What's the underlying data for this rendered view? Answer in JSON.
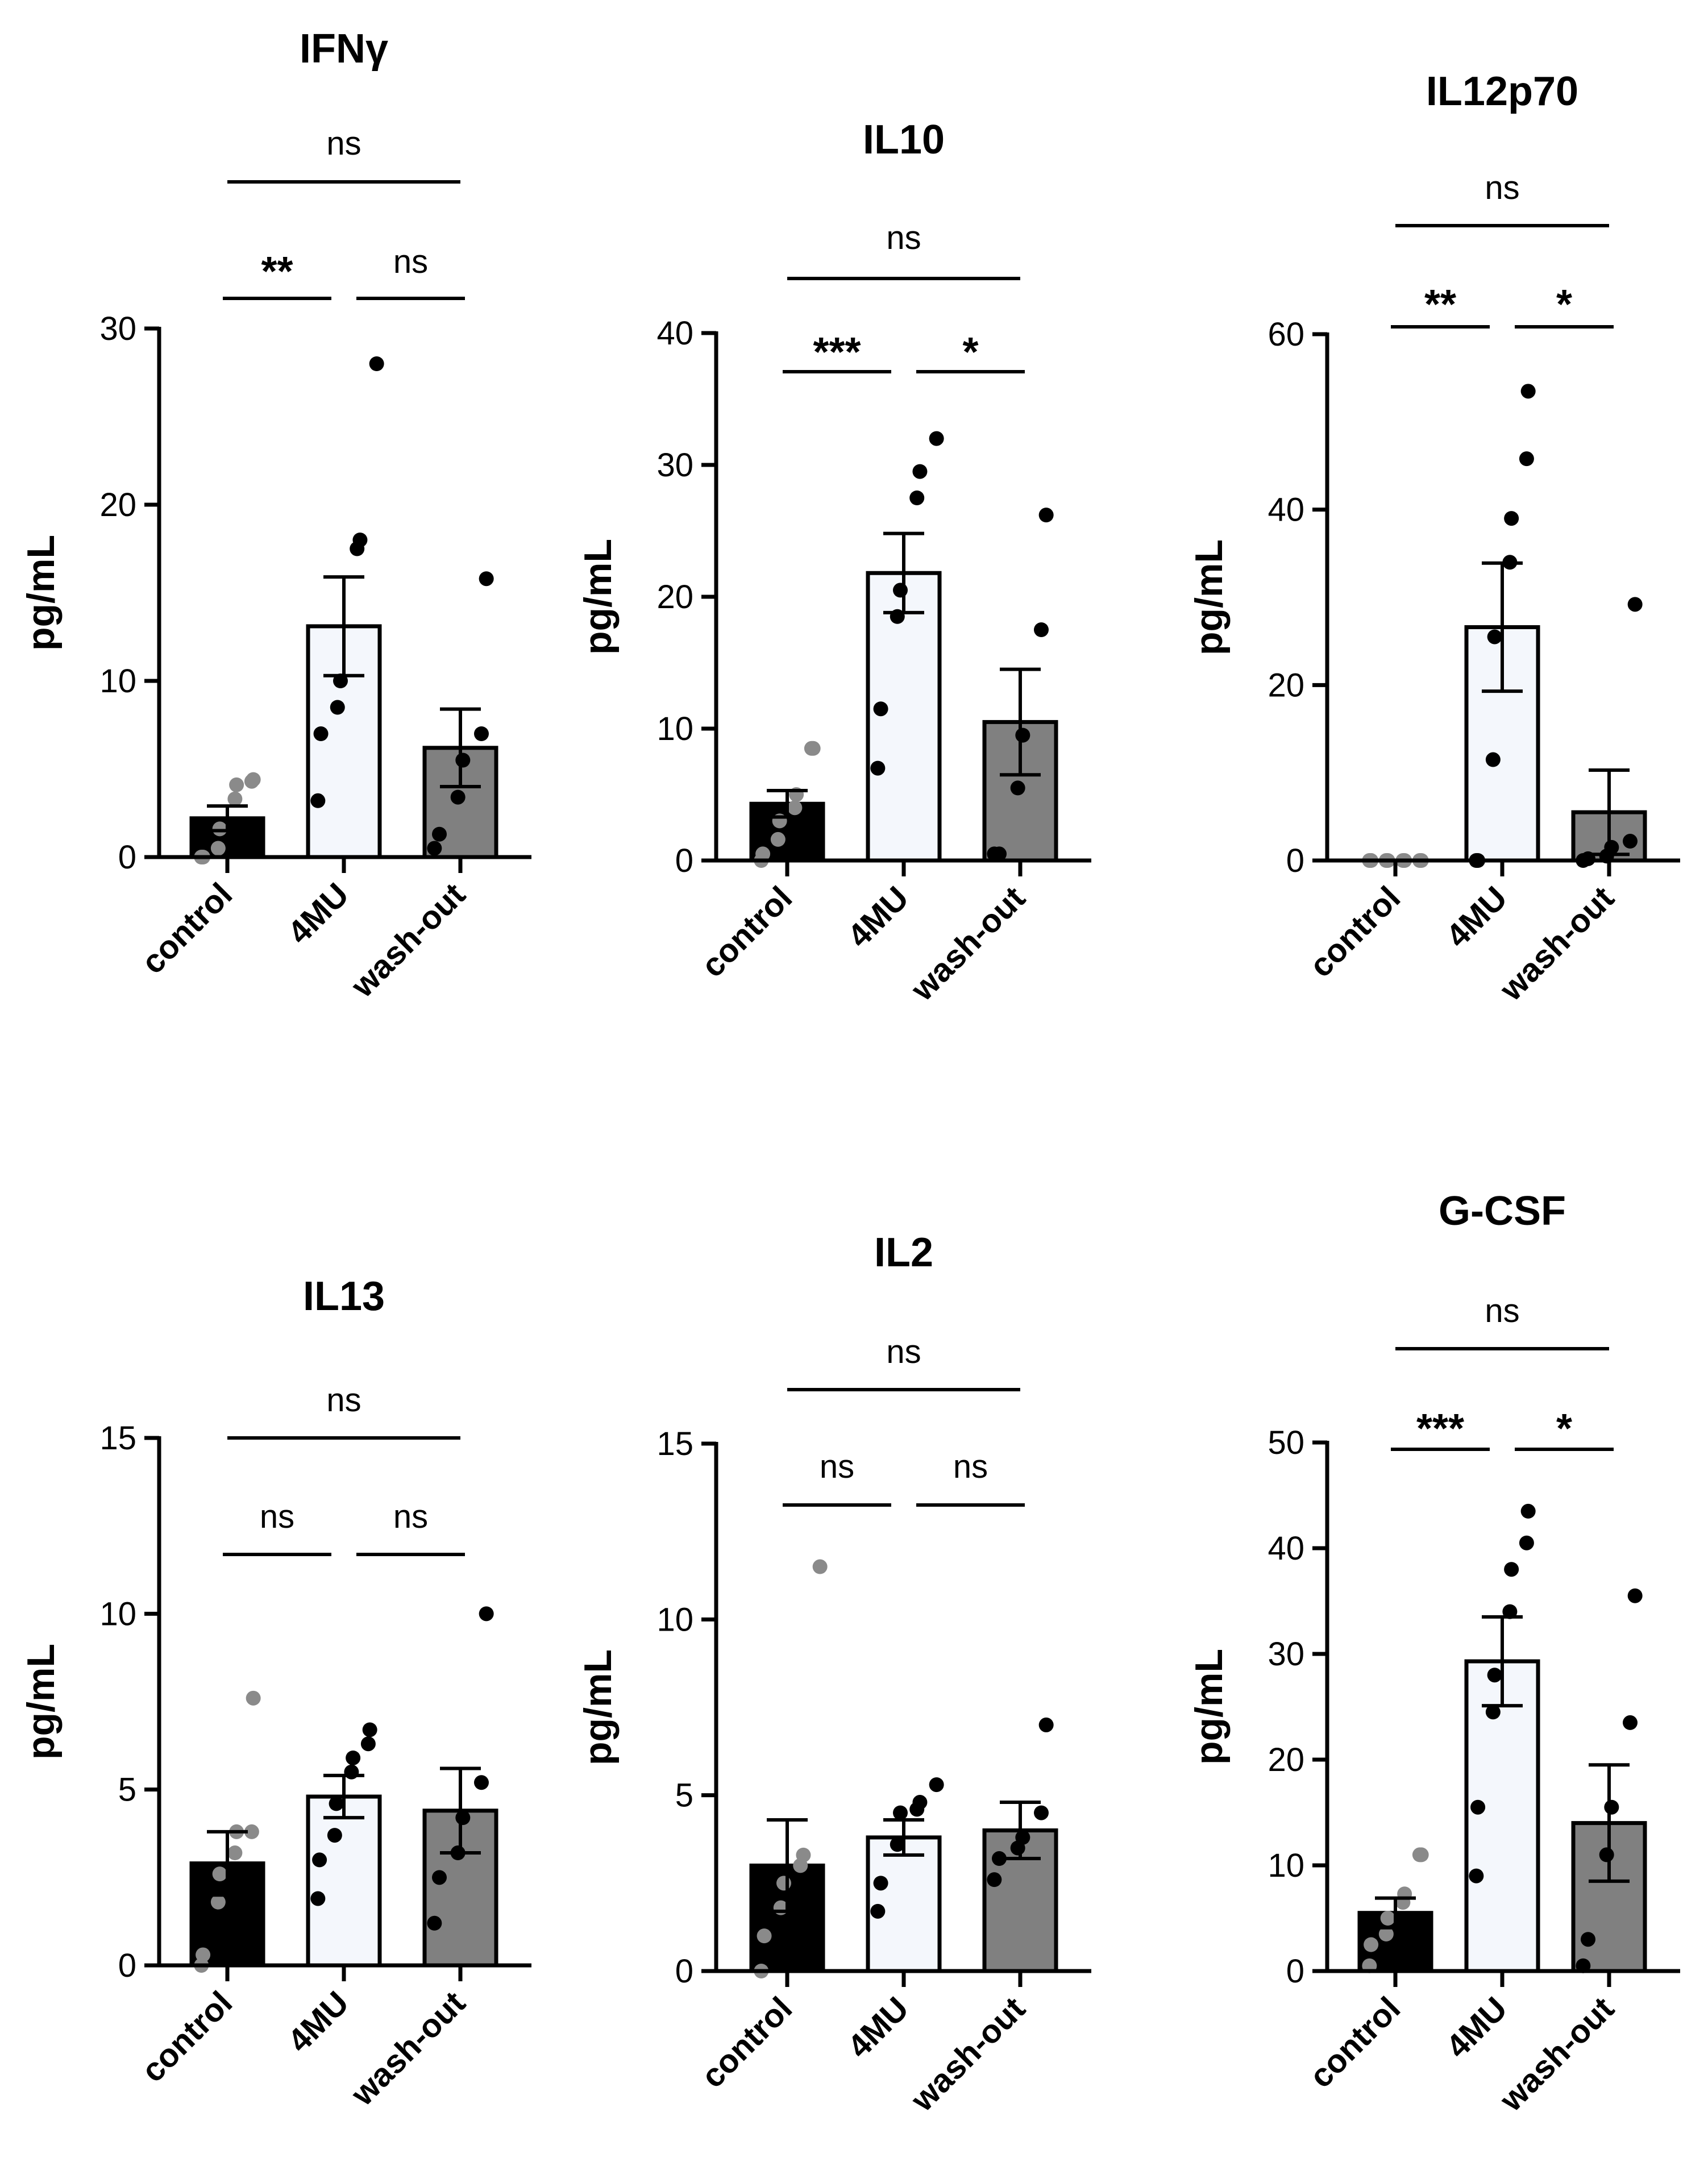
{
  "chart_data": [
    {
      "type": "bar",
      "title": "IFNγ",
      "categories": [
        "control",
        "4MU",
        "wash-out"
      ],
      "values": [
        2.2,
        13.1,
        6.2
      ],
      "sem": [
        0.7,
        2.8,
        2.2
      ],
      "points": [
        [
          0,
          0,
          0.5,
          1.6,
          3.3,
          4.1,
          4.3,
          4.4
        ],
        [
          3.2,
          7.0,
          8.5,
          10.0,
          17.5,
          18.0,
          28.0
        ],
        [
          0.5,
          1.3,
          3.4,
          5.5,
          7.0,
          15.8
        ]
      ],
      "ylabel": "pg/mL",
      "ylim": [
        0,
        30
      ],
      "yticks": [
        0,
        10,
        20,
        30
      ],
      "significance": [
        {
          "from": 0,
          "to": 1,
          "label": "**"
        },
        {
          "from": 1,
          "to": 2,
          "label": "ns"
        },
        {
          "from": 0,
          "to": 2,
          "label": "ns"
        }
      ]
    },
    {
      "type": "bar",
      "title": "IL10",
      "categories": [
        "control",
        "4MU",
        "wash-out"
      ],
      "values": [
        4.3,
        21.8,
        10.5
      ],
      "sem": [
        1.0,
        3.0,
        4.0
      ],
      "points": [
        [
          0,
          0.5,
          1.6,
          3.0,
          4.0,
          5.0,
          8.5,
          8.5
        ],
        [
          7.0,
          11.5,
          18.5,
          20.5,
          27.5,
          29.5,
          32.0
        ],
        [
          0.5,
          0.5,
          5.5,
          9.5,
          17.5,
          26.2
        ]
      ],
      "ylabel": "pg/mL",
      "ylim": [
        0,
        40
      ],
      "yticks": [
        0,
        10,
        20,
        30,
        40
      ],
      "significance": [
        {
          "from": 0,
          "to": 1,
          "label": "***"
        },
        {
          "from": 1,
          "to": 2,
          "label": "*"
        },
        {
          "from": 0,
          "to": 2,
          "label": "ns"
        }
      ]
    },
    {
      "type": "bar",
      "title": "IL12p70",
      "categories": [
        "control",
        "4MU",
        "wash-out"
      ],
      "values": [
        0.0,
        26.6,
        5.5
      ],
      "sem": [
        0.0,
        7.3,
        4.8
      ],
      "points": [
        [
          0,
          0,
          0,
          0,
          0,
          0,
          0,
          0
        ],
        [
          0,
          0,
          11.5,
          25.5,
          34.0,
          39.0,
          45.8,
          53.5
        ],
        [
          0,
          0.2,
          0.5,
          1.5,
          2.2,
          29.2
        ]
      ],
      "ylabel": "pg/mL",
      "ylim": [
        0,
        60
      ],
      "yticks": [
        0,
        20,
        40,
        60
      ],
      "significance": [
        {
          "from": 0,
          "to": 1,
          "label": "**"
        },
        {
          "from": 1,
          "to": 2,
          "label": "*"
        },
        {
          "from": 0,
          "to": 2,
          "label": "ns"
        }
      ]
    },
    {
      "type": "bar",
      "title": "IL13",
      "categories": [
        "control",
        "4MU",
        "wash-out"
      ],
      "values": [
        2.9,
        4.8,
        4.4
      ],
      "sem": [
        0.9,
        0.6,
        1.2
      ],
      "points": [
        [
          0,
          0.3,
          1.8,
          2.6,
          3.2,
          3.8,
          3.8,
          7.6
        ],
        [
          1.9,
          3.0,
          3.7,
          4.6,
          5.5,
          5.9,
          6.3,
          6.7
        ],
        [
          1.2,
          2.5,
          3.2,
          4.2,
          5.2,
          10.0
        ]
      ],
      "ylabel": "pg/mL",
      "ylim": [
        0,
        15
      ],
      "yticks": [
        0,
        5,
        10,
        15
      ],
      "significance": [
        {
          "from": 0,
          "to": 1,
          "label": "ns"
        },
        {
          "from": 1,
          "to": 2,
          "label": "ns"
        },
        {
          "from": 0,
          "to": 2,
          "label": "ns"
        }
      ]
    },
    {
      "type": "bar",
      "title": "IL2",
      "categories": [
        "control",
        "4MU",
        "wash-out"
      ],
      "values": [
        3.0,
        3.8,
        4.0
      ],
      "sem": [
        1.3,
        0.5,
        0.8
      ],
      "points": [
        [
          0,
          1.0,
          1.8,
          2.5,
          3.0,
          3.3,
          11.5
        ],
        [
          1.7,
          2.5,
          3.6,
          4.5,
          4.6,
          4.8,
          5.3
        ],
        [
          2.6,
          3.2,
          3.5,
          3.8,
          4.5,
          7.0
        ]
      ],
      "ylabel": "pg/mL",
      "ylim": [
        0,
        15
      ],
      "yticks": [
        0,
        5,
        10,
        15
      ],
      "significance": [
        {
          "from": 0,
          "to": 1,
          "label": "ns"
        },
        {
          "from": 1,
          "to": 2,
          "label": "ns"
        },
        {
          "from": 0,
          "to": 2,
          "label": "ns"
        }
      ]
    },
    {
      "type": "bar",
      "title": "G-CSF",
      "categories": [
        "control",
        "4MU",
        "wash-out"
      ],
      "values": [
        5.5,
        29.3,
        14.0
      ],
      "sem": [
        1.4,
        4.2,
        5.5
      ],
      "points": [
        [
          0.5,
          2.5,
          3.5,
          5.0,
          6.5,
          7.3,
          11.0,
          11.0
        ],
        [
          9.0,
          15.5,
          24.5,
          28.0,
          34.0,
          38.0,
          40.5,
          43.5
        ],
        [
          0.5,
          3.0,
          11.0,
          15.5,
          23.5,
          35.5
        ]
      ],
      "ylabel": "pg/mL",
      "ylim": [
        0,
        50
      ],
      "yticks": [
        0,
        10,
        20,
        30,
        40,
        50
      ],
      "significance": [
        {
          "from": 0,
          "to": 1,
          "label": "***"
        },
        {
          "from": 1,
          "to": 2,
          "label": "*"
        },
        {
          "from": 0,
          "to": 2,
          "label": "ns"
        }
      ]
    }
  ],
  "colors": {
    "control_bar": "#000000",
    "4MU_bar": "#f4f7fc",
    "wash-out_bar": "#808080",
    "control_points": "#8a8a8a",
    "points": "#000000",
    "axis": "#000000"
  }
}
